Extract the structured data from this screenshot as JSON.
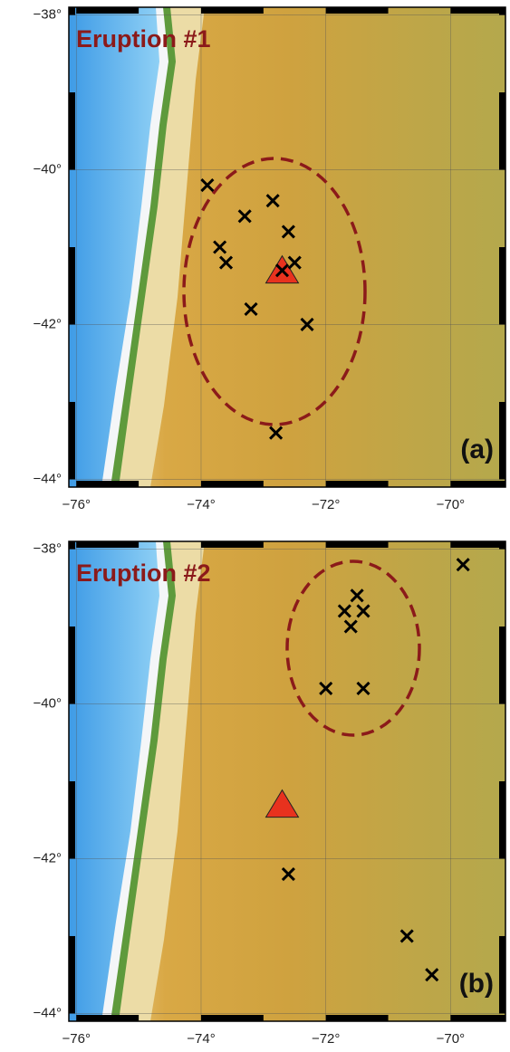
{
  "chart_data": [
    {
      "type": "scatter",
      "title": "Eruption #1",
      "panel_label": "(a)",
      "title_color": "#8b1a1a",
      "x": [
        -73.9,
        -72.85,
        -73.3,
        -72.6,
        -73.7,
        -73.6,
        -72.5,
        -72.7,
        -73.2,
        -72.3,
        -72.8
      ],
      "y": [
        -40.2,
        -40.4,
        -40.6,
        -40.8,
        -41.0,
        -41.2,
        -41.2,
        -41.3,
        -41.8,
        -42.0,
        -43.4
      ],
      "color": "#000000",
      "volcano": {
        "x": -72.7,
        "y": -41.3,
        "color": "#e8321e"
      },
      "ellipse_color": "#8b1a1a",
      "xlim": [
        -76.12,
        -69.12
      ],
      "ylim": [
        -44.1,
        -37.9
      ],
      "xticks": [
        {
          "value": -76,
          "label": "−76°"
        },
        {
          "value": -74,
          "label": "−74°"
        },
        {
          "value": -72,
          "label": "−72°"
        },
        {
          "value": -70,
          "label": "−70°"
        }
      ],
      "yticks": [
        {
          "value": -38,
          "label": "−38°"
        },
        {
          "value": -40,
          "label": "−40°"
        },
        {
          "value": -42,
          "label": "−42°"
        },
        {
          "value": -44,
          "label": "−44°"
        }
      ],
      "grid": true
    },
    {
      "type": "scatter",
      "title": "Eruption #2",
      "panel_label": "(b)",
      "title_color": "#8b1a1a",
      "x": [
        -69.8,
        -71.5,
        -71.4,
        -71.7,
        -71.6,
        -72.0,
        -71.4,
        -72.6,
        -70.7,
        -70.3
      ],
      "y": [
        -38.2,
        -38.6,
        -38.8,
        -38.8,
        -39.0,
        -39.8,
        -39.8,
        -42.2,
        -43.0,
        -43.5
      ],
      "color": "#000000",
      "volcano": {
        "x": -72.7,
        "y": -41.3,
        "color": "#e8321e"
      },
      "ellipse_color": "#8b1a1a",
      "xlim": [
        -76.12,
        -69.12
      ],
      "ylim": [
        -44.1,
        -37.9
      ],
      "xticks": [
        {
          "value": -76,
          "label": "−76°"
        },
        {
          "value": -74,
          "label": "−74°"
        },
        {
          "value": -72,
          "label": "−72°"
        },
        {
          "value": -70,
          "label": "−70°"
        }
      ],
      "yticks": [
        {
          "value": -38,
          "label": "−38°"
        },
        {
          "value": -40,
          "label": "−40°"
        },
        {
          "value": -42,
          "label": "−42°"
        },
        {
          "value": -44,
          "label": "−44°"
        }
      ],
      "grid": true
    }
  ]
}
